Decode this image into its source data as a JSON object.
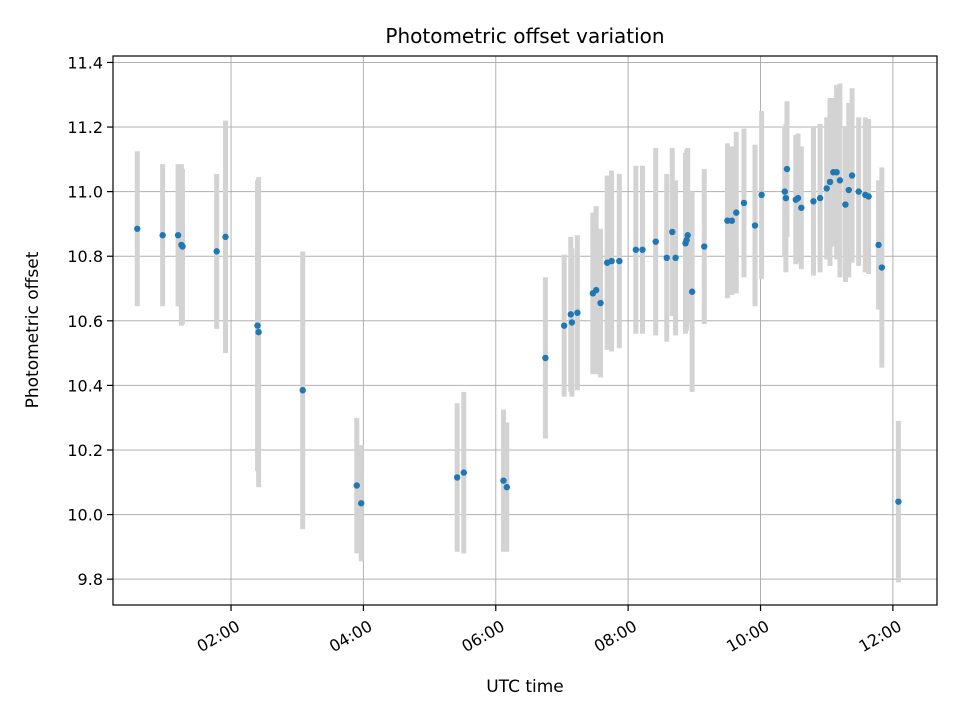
{
  "chart_data": {
    "type": "scatter",
    "title": "Photometric offset variation",
    "xlabel": "UTC time",
    "ylabel": "Photometric offset",
    "xlim": [
      "00:13",
      "12:40"
    ],
    "ylim": [
      9.72,
      11.42
    ],
    "yticks": [
      "9.8",
      "10.0",
      "10.2",
      "10.4",
      "10.6",
      "10.8",
      "11.0",
      "11.2",
      "11.4"
    ],
    "xticks": [
      "02:00",
      "04:00",
      "06:00",
      "08:00",
      "10:00",
      "12:00"
    ],
    "grid": true,
    "colors": {
      "point": "#1f77b4",
      "errorbar": "#d3d3d3",
      "grid": "#b0b0b0"
    },
    "series": [
      {
        "x": [
          "00:35",
          "00:58",
          "01:12",
          "01:15",
          "01:16",
          "01:47",
          "01:55",
          "02:24",
          "02:25",
          "03:05",
          "03:54",
          "03:58",
          "05:25",
          "05:31",
          "06:07",
          "06:10",
          "06:45",
          "07:02",
          "07:08",
          "07:09",
          "07:14",
          "07:28",
          "07:31",
          "07:35",
          "07:41",
          "07:45",
          "07:52",
          "08:07",
          "08:13",
          "08:25",
          "08:35",
          "08:40",
          "08:43",
          "08:52",
          "08:53",
          "08:54",
          "08:58",
          "09:09",
          "09:30",
          "09:34",
          "09:38",
          "09:45",
          "09:55",
          "10:01",
          "10:22",
          "10:23",
          "10:24",
          "10:32",
          "10:34",
          "10:37",
          "10:48",
          "10:54",
          "11:00",
          "11:03",
          "11:06",
          "11:09",
          "11:12",
          "11:17",
          "11:20",
          "11:23",
          "11:29",
          "11:35",
          "11:38",
          "11:47",
          "11:50",
          "12:05"
        ],
        "y": [
          10.885,
          10.865,
          10.865,
          10.835,
          10.83,
          10.815,
          10.86,
          10.585,
          10.565,
          10.385,
          10.09,
          10.035,
          10.115,
          10.13,
          10.105,
          10.085,
          10.485,
          10.585,
          10.62,
          10.595,
          10.625,
          10.685,
          10.695,
          10.655,
          10.78,
          10.785,
          10.785,
          10.82,
          10.82,
          10.845,
          10.795,
          10.875,
          10.795,
          10.84,
          10.85,
          10.865,
          10.69,
          10.83,
          10.91,
          10.91,
          10.935,
          10.965,
          10.895,
          10.99,
          11.0,
          10.98,
          11.07,
          10.975,
          10.98,
          10.95,
          10.97,
          10.98,
          11.01,
          11.03,
          11.06,
          11.06,
          11.035,
          10.96,
          11.005,
          11.05,
          11.0,
          10.99,
          10.985,
          10.835,
          10.765,
          10.04
        ],
        "err": [
          0.24,
          0.22,
          0.22,
          0.25,
          0.24,
          0.24,
          0.36,
          0.45,
          0.48,
          0.43,
          0.21,
          0.18,
          0.23,
          0.25,
          0.22,
          0.2,
          0.25,
          0.22,
          0.24,
          0.23,
          0.24,
          0.25,
          0.26,
          0.23,
          0.27,
          0.28,
          0.27,
          0.26,
          0.26,
          0.29,
          0.26,
          0.26,
          0.24,
          0.28,
          0.28,
          0.27,
          0.31,
          0.24,
          0.24,
          0.23,
          0.25,
          0.23,
          0.25,
          0.26,
          0.2,
          0.23,
          0.21,
          0.2,
          0.2,
          0.19,
          0.23,
          0.23,
          0.22,
          0.26,
          0.23,
          0.27,
          0.3,
          0.24,
          0.27,
          0.27,
          0.23,
          0.24,
          0.24,
          0.2,
          0.31,
          0.25
        ]
      }
    ]
  }
}
